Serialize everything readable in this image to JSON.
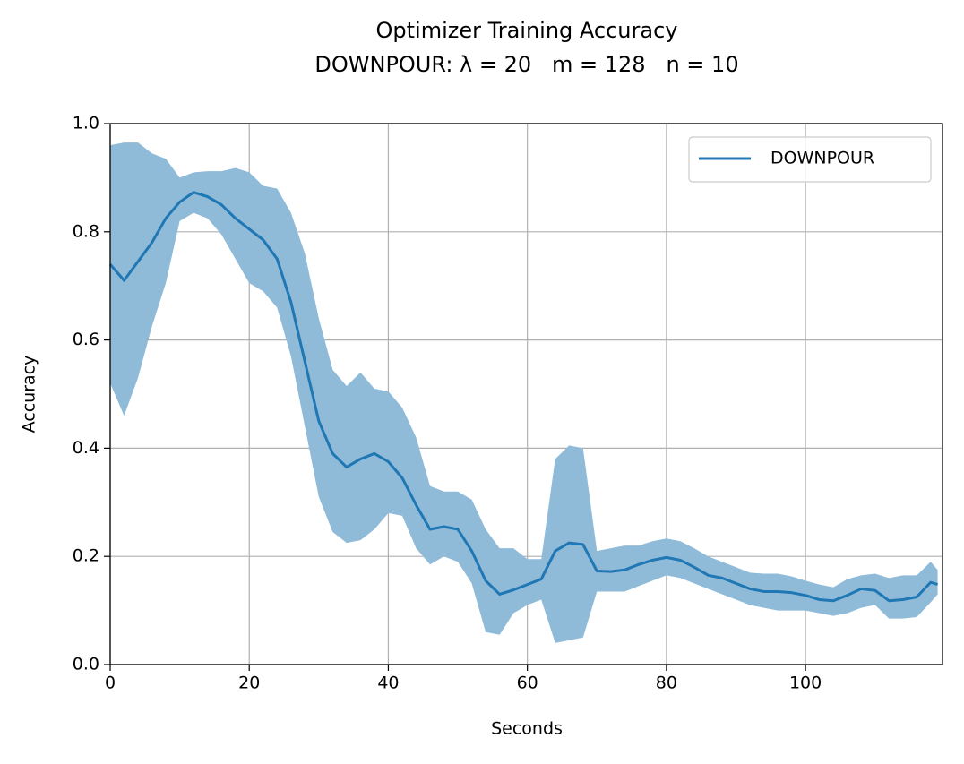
{
  "chart_data": {
    "type": "line",
    "title": "Optimizer Training Accuracy",
    "subtitle": "DOWNPOUR: λ = 20   m = 128   n = 10",
    "xlabel": "Seconds",
    "ylabel": "Accuracy",
    "x": [
      0,
      2,
      4,
      6,
      8,
      10,
      12,
      14,
      16,
      18,
      20,
      22,
      24,
      26,
      28,
      30,
      32,
      34,
      36,
      38,
      40,
      42,
      44,
      46,
      48,
      50,
      52,
      54,
      56,
      58,
      60,
      62,
      64,
      66,
      68,
      70,
      72,
      74,
      76,
      78,
      80,
      82,
      84,
      86,
      88,
      90,
      92,
      94,
      96,
      98,
      100,
      102,
      104,
      106,
      108,
      110,
      112,
      114,
      116,
      118,
      119
    ],
    "series": [
      {
        "name": "DOWNPOUR",
        "color": "#1f77b4",
        "band_color": "#8fbbd9",
        "values": [
          0.74,
          0.71,
          0.745,
          0.78,
          0.825,
          0.855,
          0.873,
          0.865,
          0.85,
          0.825,
          0.805,
          0.785,
          0.75,
          0.67,
          0.56,
          0.45,
          0.39,
          0.365,
          0.38,
          0.39,
          0.375,
          0.345,
          0.295,
          0.25,
          0.255,
          0.25,
          0.21,
          0.155,
          0.13,
          0.138,
          0.148,
          0.158,
          0.21,
          0.225,
          0.222,
          0.173,
          0.172,
          0.175,
          0.185,
          0.193,
          0.198,
          0.193,
          0.18,
          0.165,
          0.16,
          0.15,
          0.14,
          0.135,
          0.135,
          0.133,
          0.128,
          0.12,
          0.118,
          0.128,
          0.14,
          0.137,
          0.118,
          0.12,
          0.125,
          0.152,
          0.148
        ],
        "upper": [
          0.96,
          0.965,
          0.965,
          0.945,
          0.935,
          0.9,
          0.91,
          0.912,
          0.912,
          0.918,
          0.91,
          0.885,
          0.88,
          0.835,
          0.76,
          0.64,
          0.545,
          0.515,
          0.54,
          0.51,
          0.505,
          0.475,
          0.42,
          0.33,
          0.32,
          0.32,
          0.305,
          0.25,
          0.215,
          0.215,
          0.195,
          0.195,
          0.38,
          0.405,
          0.4,
          0.21,
          0.215,
          0.22,
          0.22,
          0.228,
          0.233,
          0.228,
          0.215,
          0.2,
          0.19,
          0.18,
          0.17,
          0.168,
          0.168,
          0.163,
          0.155,
          0.148,
          0.143,
          0.158,
          0.165,
          0.168,
          0.16,
          0.165,
          0.165,
          0.19,
          0.175
        ],
        "lower": [
          0.52,
          0.46,
          0.53,
          0.625,
          0.705,
          0.82,
          0.835,
          0.825,
          0.795,
          0.75,
          0.705,
          0.69,
          0.66,
          0.57,
          0.44,
          0.31,
          0.245,
          0.225,
          0.23,
          0.25,
          0.28,
          0.275,
          0.215,
          0.185,
          0.2,
          0.19,
          0.15,
          0.06,
          0.055,
          0.095,
          0.11,
          0.12,
          0.04,
          0.045,
          0.05,
          0.135,
          0.135,
          0.135,
          0.145,
          0.155,
          0.165,
          0.16,
          0.15,
          0.14,
          0.13,
          0.12,
          0.11,
          0.105,
          0.1,
          0.1,
          0.1,
          0.095,
          0.09,
          0.095,
          0.105,
          0.11,
          0.085,
          0.085,
          0.088,
          0.115,
          0.13
        ]
      }
    ],
    "xlim": [
      0,
      119.7
    ],
    "ylim": [
      0,
      1
    ],
    "xticks": [
      0,
      20,
      40,
      60,
      80,
      100
    ],
    "yticks": [
      {
        "value": 0,
        "label": "0.0"
      },
      0.2,
      0.4,
      0.6,
      0.8,
      {
        "value": 1,
        "label": "1.0"
      }
    ],
    "grid": true,
    "legend": "upper right"
  }
}
